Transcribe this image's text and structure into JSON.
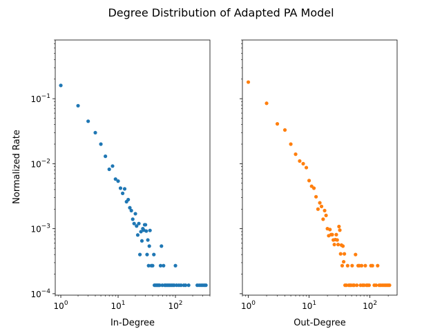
{
  "chart_data": [
    {
      "type": "scatter",
      "title": "Degree Distribution of Adapted PA Model",
      "xlabel": "In-Degree",
      "ylabel": "Normalized Rate",
      "xscale": "log",
      "yscale": "log",
      "xlim": [
        0.8,
        400
      ],
      "ylim": [
        9.5e-05,
        0.8
      ],
      "xticks": [
        {
          "value": 1,
          "base": "10",
          "exp": "0"
        },
        {
          "value": 10,
          "base": "10",
          "exp": "1"
        },
        {
          "value": 100,
          "base": "10",
          "exp": "2"
        }
      ],
      "yticks": [
        {
          "value": 0.0001,
          "base": "10",
          "exp": "−4"
        },
        {
          "value": 0.001,
          "base": "10",
          "exp": "−3"
        },
        {
          "value": 0.01,
          "base": "10",
          "exp": "−2"
        },
        {
          "value": 0.1,
          "base": "10",
          "exp": "−1"
        }
      ],
      "grid": false,
      "color": "#1f77b4",
      "points": [
        [
          1,
          0.16
        ],
        [
          2,
          0.078
        ],
        [
          3,
          0.045
        ],
        [
          4,
          0.03
        ],
        [
          5,
          0.02
        ],
        [
          6,
          0.013
        ],
        [
          7,
          0.0082
        ],
        [
          8,
          0.0092
        ],
        [
          9,
          0.0058
        ],
        [
          10,
          0.0054
        ],
        [
          11,
          0.0042
        ],
        [
          12,
          0.0035
        ],
        [
          13,
          0.0041
        ],
        [
          14,
          0.0026
        ],
        [
          15,
          0.0028
        ],
        [
          16,
          0.0021
        ],
        [
          17,
          0.0019
        ],
        [
          18,
          0.0014
        ],
        [
          19,
          0.0012
        ],
        [
          20,
          0.0017
        ],
        [
          21,
          0.0011
        ],
        [
          22,
          0.0008
        ],
        [
          23,
          0.0012
        ],
        [
          24,
          0.0004
        ],
        [
          25,
          0.0009
        ],
        [
          26,
          0.00065
        ],
        [
          27,
          0.001
        ],
        [
          28,
          0.00095
        ],
        [
          29,
          0.00115
        ],
        [
          30,
          0.00115
        ],
        [
          31,
          0.00092
        ],
        [
          32,
          0.0004
        ],
        [
          33,
          0.00067
        ],
        [
          34,
          0.00027
        ],
        [
          35,
          0.00054
        ],
        [
          36,
          0.00094
        ],
        [
          38,
          0.00027
        ],
        [
          40,
          0.00027
        ],
        [
          42,
          0.0004
        ],
        [
          43,
          0.000135
        ],
        [
          45,
          0.000135
        ],
        [
          47,
          0.000135
        ],
        [
          49,
          0.000135
        ],
        [
          51,
          0.000135
        ],
        [
          53,
          0.000135
        ],
        [
          55,
          0.00027
        ],
        [
          57,
          0.00054
        ],
        [
          59,
          0.000135
        ],
        [
          62,
          0.00027
        ],
        [
          65,
          0.000135
        ],
        [
          68,
          0.000135
        ],
        [
          72,
          0.000135
        ],
        [
          76,
          0.000135
        ],
        [
          80,
          0.000135
        ],
        [
          85,
          0.000135
        ],
        [
          90,
          0.000135
        ],
        [
          95,
          0.000135
        ],
        [
          100,
          0.00027
        ],
        [
          105,
          0.000135
        ],
        [
          115,
          0.000135
        ],
        [
          125,
          0.000135
        ],
        [
          140,
          0.000135
        ],
        [
          150,
          0.000135
        ],
        [
          170,
          0.000135
        ],
        [
          240,
          0.000135
        ],
        [
          260,
          0.000135
        ],
        [
          280,
          0.000135
        ],
        [
          300,
          0.000135
        ],
        [
          320,
          0.000135
        ],
        [
          340,
          0.000135
        ]
      ]
    },
    {
      "type": "scatter",
      "title": "",
      "xlabel": "Out-Degree",
      "ylabel": "",
      "xscale": "log",
      "yscale": "log",
      "xlim": [
        0.8,
        280
      ],
      "ylim": [
        9.5e-05,
        0.8
      ],
      "xticks": [
        {
          "value": 1,
          "base": "10",
          "exp": "0"
        },
        {
          "value": 10,
          "base": "10",
          "exp": "1"
        },
        {
          "value": 100,
          "base": "10",
          "exp": "2"
        }
      ],
      "yticks": [
        {
          "value": 0.0001,
          "base": "",
          "exp": ""
        },
        {
          "value": 0.001,
          "base": "",
          "exp": ""
        },
        {
          "value": 0.01,
          "base": "",
          "exp": ""
        },
        {
          "value": 0.1,
          "base": "",
          "exp": ""
        }
      ],
      "grid": false,
      "color": "#ff7f0e",
      "points": [
        [
          1,
          0.18
        ],
        [
          2,
          0.085
        ],
        [
          3,
          0.041
        ],
        [
          4,
          0.033
        ],
        [
          5,
          0.02
        ],
        [
          6,
          0.014
        ],
        [
          7,
          0.011
        ],
        [
          8,
          0.01
        ],
        [
          9,
          0.0087
        ],
        [
          10,
          0.0055
        ],
        [
          11,
          0.0045
        ],
        [
          12,
          0.0042
        ],
        [
          13,
          0.0031
        ],
        [
          14,
          0.002
        ],
        [
          15,
          0.0025
        ],
        [
          16,
          0.0022
        ],
        [
          17,
          0.0014
        ],
        [
          18,
          0.0019
        ],
        [
          19,
          0.0016
        ],
        [
          20,
          0.001
        ],
        [
          21,
          0.00078
        ],
        [
          22,
          0.00097
        ],
        [
          23,
          0.00081
        ],
        [
          24,
          0.00081
        ],
        [
          25,
          0.00067
        ],
        [
          26,
          0.00057
        ],
        [
          27,
          0.00068
        ],
        [
          28,
          0.00081
        ],
        [
          29,
          0.00067
        ],
        [
          30,
          0.00057
        ],
        [
          31,
          0.00108
        ],
        [
          32,
          0.00095
        ],
        [
          33,
          0.00041
        ],
        [
          34,
          0.00056
        ],
        [
          35,
          0.00027
        ],
        [
          36,
          0.00054
        ],
        [
          37,
          0.00031
        ],
        [
          38,
          0.00041
        ],
        [
          39,
          0.000135
        ],
        [
          41,
          0.000135
        ],
        [
          43,
          0.00027
        ],
        [
          45,
          0.000135
        ],
        [
          47,
          0.000135
        ],
        [
          49,
          0.000135
        ],
        [
          51,
          0.00027
        ],
        [
          53,
          0.000135
        ],
        [
          55,
          0.000135
        ],
        [
          58,
          0.0004
        ],
        [
          61,
          0.000135
        ],
        [
          64,
          0.00027
        ],
        [
          67,
          0.00027
        ],
        [
          70,
          0.000135
        ],
        [
          73,
          0.00027
        ],
        [
          76,
          0.000135
        ],
        [
          80,
          0.000135
        ],
        [
          84,
          0.00027
        ],
        [
          88,
          0.000135
        ],
        [
          92,
          0.000135
        ],
        [
          97,
          0.000135
        ],
        [
          104,
          0.00027
        ],
        [
          110,
          0.00027
        ],
        [
          118,
          0.000135
        ],
        [
          126,
          0.000135
        ],
        [
          134,
          0.00027
        ],
        [
          142,
          0.000135
        ],
        [
          150,
          0.000135
        ],
        [
          160,
          0.000135
        ],
        [
          170,
          0.000135
        ],
        [
          180,
          0.000135
        ],
        [
          190,
          0.000135
        ],
        [
          200,
          0.000135
        ],
        [
          210,
          0.000135
        ]
      ]
    }
  ]
}
